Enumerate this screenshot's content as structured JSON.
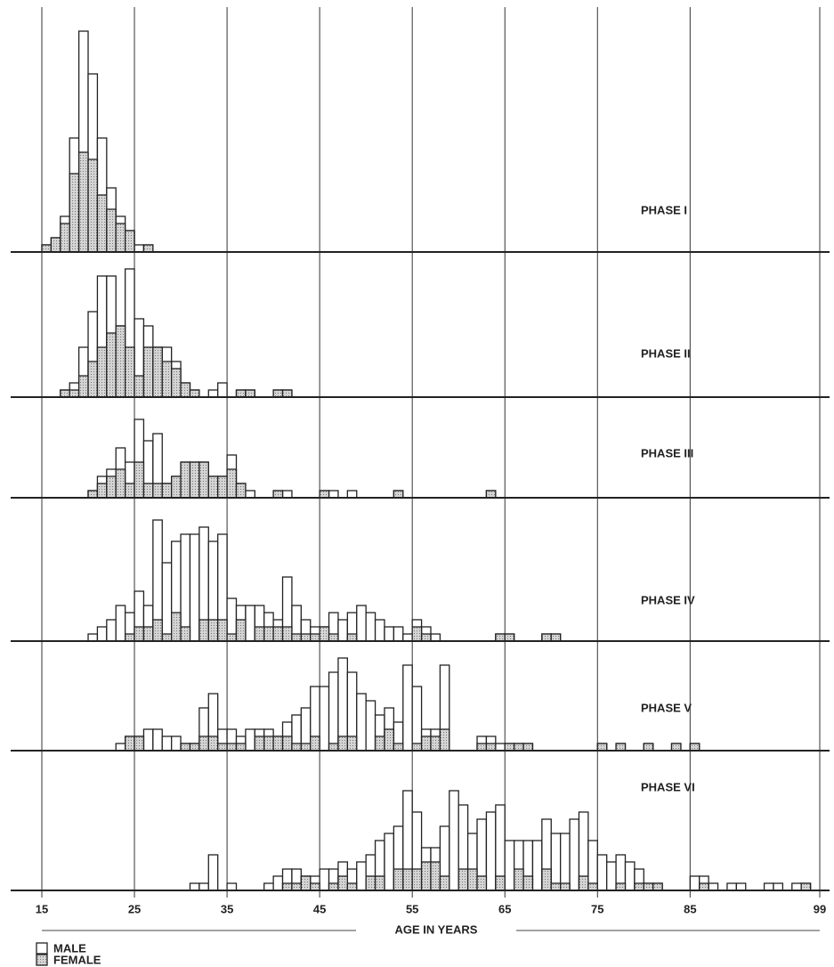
{
  "chart_data": [
    {
      "type": "histogram",
      "title": "PHASE I",
      "bins": [
        15,
        16,
        17,
        18,
        19,
        20,
        21,
        22,
        23,
        24,
        25,
        26,
        27
      ],
      "series": [
        {
          "name": "MALE",
          "color": "#ffffff",
          "values": [
            1,
            2,
            5,
            16,
            31,
            25,
            16,
            9,
            5,
            3,
            1,
            1
          ]
        },
        {
          "name": "FEMALE",
          "color": "#b8b8b8",
          "values": [
            1,
            2,
            4,
            11,
            14,
            13,
            8,
            6,
            4,
            3,
            0,
            1
          ]
        }
      ]
    },
    {
      "type": "histogram",
      "title": "PHASE II",
      "bins": [
        17,
        18,
        19,
        20,
        21,
        22,
        23,
        24,
        25,
        26,
        27,
        28,
        29,
        30,
        31,
        32,
        33,
        34,
        35,
        36,
        37,
        38,
        39,
        40,
        41,
        42
      ],
      "series": [
        {
          "name": "MALE",
          "color": "#ffffff",
          "values": [
            1,
            2,
            7,
            12,
            17,
            17,
            10,
            18,
            11,
            10,
            7,
            7,
            5,
            2,
            1,
            0,
            1,
            2,
            0,
            1,
            1,
            0,
            0,
            1,
            1
          ]
        },
        {
          "name": "FEMALE",
          "color": "#b8b8b8",
          "values": [
            1,
            1,
            3,
            5,
            7,
            9,
            10,
            7,
            3,
            7,
            7,
            5,
            4,
            2,
            1,
            0,
            0,
            0,
            0,
            1,
            1,
            0,
            0,
            1,
            1
          ]
        }
      ]
    },
    {
      "type": "histogram",
      "title": "PHASE III",
      "bins": [
        20,
        21,
        22,
        23,
        24,
        25,
        26,
        27,
        28,
        29,
        30,
        31,
        32,
        33,
        34,
        35,
        36,
        37,
        38,
        39,
        40,
        41,
        42,
        43,
        44,
        45,
        46,
        47,
        48,
        49,
        50,
        51,
        52,
        53,
        54,
        55,
        56,
        57,
        58,
        59,
        60,
        61,
        62,
        63,
        64
      ],
      "series": [
        {
          "name": "MALE",
          "color": "#ffffff",
          "values": [
            1,
            3,
            4,
            7,
            5,
            11,
            8,
            9,
            2,
            3,
            5,
            5,
            5,
            3,
            3,
            6,
            2,
            1,
            0,
            0,
            1,
            1,
            0,
            0,
            0,
            1,
            1,
            0,
            1,
            0,
            0,
            0,
            0,
            1,
            0,
            0,
            0,
            0,
            0,
            0,
            0,
            0,
            0,
            1
          ]
        },
        {
          "name": "FEMALE",
          "color": "#b8b8b8",
          "values": [
            1,
            2,
            3,
            4,
            2,
            5,
            2,
            2,
            2,
            3,
            5,
            5,
            5,
            3,
            3,
            4,
            2,
            0,
            0,
            0,
            1,
            0,
            0,
            0,
            0,
            1,
            0,
            0,
            0,
            0,
            0,
            0,
            0,
            1,
            0,
            0,
            0,
            0,
            0,
            0,
            0,
            0,
            0,
            1
          ]
        }
      ]
    },
    {
      "type": "histogram",
      "title": "PHASE IV",
      "bins": [
        20,
        21,
        22,
        23,
        24,
        25,
        26,
        27,
        28,
        29,
        30,
        31,
        32,
        33,
        34,
        35,
        36,
        37,
        38,
        39,
        40,
        41,
        42,
        43,
        44,
        45,
        46,
        47,
        48,
        49,
        50,
        51,
        52,
        53,
        54,
        55,
        56,
        57,
        58,
        59,
        60,
        61,
        62,
        63,
        64,
        65,
        66,
        67,
        68,
        69,
        70,
        71,
        72
      ],
      "series": [
        {
          "name": "MALE",
          "color": "#ffffff",
          "values": [
            1,
            2,
            3,
            5,
            4,
            7,
            5,
            17,
            11,
            14,
            15,
            15,
            16,
            14,
            15,
            6,
            5,
            5,
            5,
            4,
            3,
            9,
            5,
            3,
            2,
            2,
            4,
            3,
            4,
            5,
            4,
            3,
            2,
            2,
            1,
            3,
            2,
            1,
            0,
            0,
            0,
            0,
            0,
            0,
            1,
            1,
            0,
            0,
            0,
            1,
            1,
            0
          ]
        },
        {
          "name": "FEMALE",
          "color": "#b8b8b8",
          "values": [
            0,
            0,
            0,
            0,
            1,
            2,
            2,
            3,
            1,
            4,
            2,
            0,
            3,
            3,
            3,
            1,
            3,
            0,
            2,
            2,
            2,
            2,
            1,
            1,
            1,
            2,
            1,
            0,
            1,
            0,
            0,
            0,
            0,
            0,
            0,
            2,
            1,
            0,
            0,
            0,
            0,
            0,
            0,
            0,
            1,
            1,
            0,
            0,
            0,
            1,
            1,
            0
          ]
        }
      ]
    },
    {
      "type": "histogram",
      "title": "PHASE V",
      "bins": [
        23,
        24,
        25,
        26,
        27,
        28,
        29,
        30,
        31,
        32,
        33,
        34,
        35,
        36,
        37,
        38,
        39,
        40,
        41,
        42,
        43,
        44,
        45,
        46,
        47,
        48,
        49,
        50,
        51,
        52,
        53,
        54,
        55,
        56,
        57,
        58,
        59,
        60,
        61,
        62,
        63,
        64,
        65,
        66,
        67,
        68,
        69,
        70,
        71,
        72,
        73,
        74,
        75,
        76,
        77,
        78,
        79,
        80,
        81,
        82,
        83,
        84,
        85,
        86,
        87
      ],
      "series": [
        {
          "name": "MALE",
          "color": "#ffffff",
          "values": [
            1,
            2,
            2,
            3,
            3,
            2,
            2,
            1,
            1,
            6,
            8,
            3,
            3,
            2,
            3,
            3,
            3,
            2,
            4,
            5,
            6,
            9,
            9,
            11,
            13,
            11,
            8,
            7,
            5,
            6,
            4,
            12,
            9,
            3,
            3,
            12,
            0,
            0,
            0,
            2,
            2,
            1,
            1,
            1,
            1,
            0,
            0,
            0,
            0,
            0,
            0,
            0,
            1,
            0,
            1,
            0,
            0,
            1,
            0,
            0,
            1,
            0,
            1,
            0
          ]
        },
        {
          "name": "FEMALE",
          "color": "#b8b8b8",
          "values": [
            0,
            2,
            2,
            0,
            0,
            0,
            0,
            1,
            1,
            2,
            2,
            1,
            1,
            1,
            0,
            2,
            2,
            2,
            2,
            1,
            1,
            2,
            0,
            1,
            2,
            2,
            0,
            0,
            2,
            3,
            1,
            0,
            1,
            2,
            2,
            3,
            0,
            0,
            0,
            1,
            1,
            0,
            1,
            1,
            1,
            0,
            0,
            0,
            0,
            0,
            0,
            0,
            1,
            0,
            1,
            0,
            0,
            1,
            0,
            0,
            1,
            0,
            1,
            0
          ]
        }
      ]
    },
    {
      "type": "histogram",
      "title": "PHASE VI",
      "bins": [
        31,
        32,
        33,
        34,
        35,
        36,
        37,
        38,
        39,
        40,
        41,
        42,
        43,
        44,
        45,
        46,
        47,
        48,
        49,
        50,
        51,
        52,
        53,
        54,
        55,
        56,
        57,
        58,
        59,
        60,
        61,
        62,
        63,
        64,
        65,
        66,
        67,
        68,
        69,
        70,
        71,
        72,
        73,
        74,
        75,
        76,
        77,
        78,
        79,
        80,
        81,
        82,
        83,
        84,
        85,
        86,
        87,
        88,
        89,
        90,
        91,
        92,
        93,
        94,
        95,
        96,
        97,
        98,
        99
      ],
      "series": [
        {
          "name": "MALE",
          "color": "#ffffff",
          "values": [
            1,
            1,
            5,
            0,
            1,
            0,
            0,
            0,
            1,
            2,
            3,
            3,
            2,
            2,
            3,
            3,
            4,
            3,
            4,
            5,
            7,
            8,
            9,
            14,
            11,
            6,
            6,
            9,
            14,
            12,
            8,
            10,
            11,
            12,
            7,
            7,
            7,
            7,
            10,
            8,
            8,
            10,
            11,
            7,
            5,
            4,
            5,
            4,
            3,
            1,
            1,
            0,
            0,
            0,
            2,
            2,
            1,
            0,
            1,
            1,
            0,
            0,
            1,
            1,
            0,
            1,
            1,
            0
          ]
        },
        {
          "name": "FEMALE",
          "color": "#b8b8b8",
          "values": [
            0,
            0,
            0,
            0,
            0,
            0,
            0,
            0,
            0,
            0,
            1,
            1,
            2,
            1,
            0,
            1,
            2,
            1,
            0,
            2,
            2,
            0,
            3,
            3,
            3,
            4,
            4,
            2,
            0,
            3,
            3,
            2,
            0,
            2,
            0,
            3,
            2,
            0,
            3,
            1,
            1,
            0,
            2,
            1,
            0,
            0,
            1,
            0,
            1,
            1,
            1,
            0,
            0,
            0,
            0,
            1,
            0,
            0,
            0,
            0,
            0,
            0,
            0,
            0,
            0,
            0,
            1,
            0
          ]
        }
      ],
      "xlim": [
        15,
        99
      ],
      "xticks": [
        15,
        25,
        35,
        45,
        55,
        65,
        75,
        85,
        99
      ],
      "xlabel": "AGE IN YEARS"
    }
  ]
}
